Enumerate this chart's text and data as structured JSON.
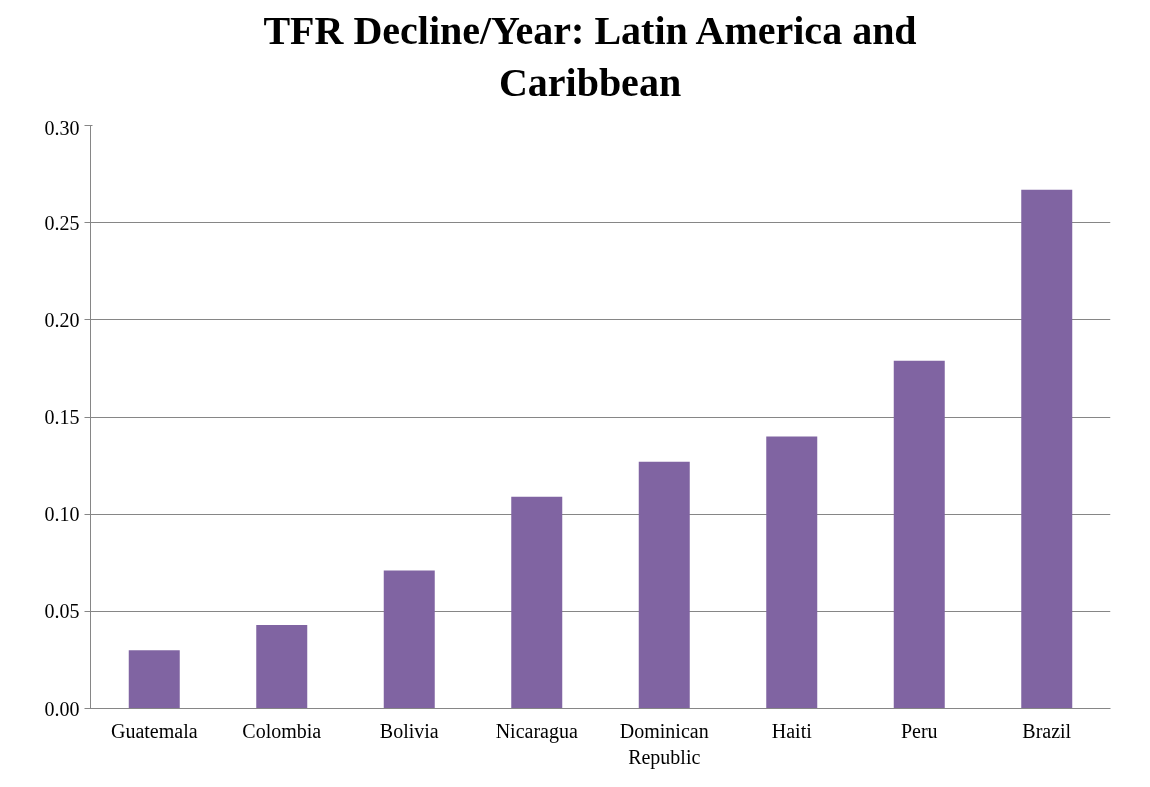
{
  "chart_data": {
    "type": "bar",
    "title": "TFR Decline/Year: Latin America and Caribbean",
    "categories": [
      "Guatemala",
      "Colombia",
      "Bolivia",
      "Nicaragua",
      "Dominican Republic",
      "Haiti",
      "Peru",
      "Brazil"
    ],
    "values": [
      0.03,
      0.043,
      0.071,
      0.109,
      0.127,
      0.14,
      0.179,
      0.267
    ],
    "color": "#8064a2",
    "ylim": [
      0,
      0.3
    ],
    "yticks": [
      {
        "value": 0,
        "label": "0.00"
      },
      {
        "value": 0.05,
        "label": "0.05"
      },
      {
        "value": 0.1,
        "label": "0.10"
      },
      {
        "value": 0.15,
        "label": "0.15"
      },
      {
        "value": 0.2,
        "label": "0.20"
      },
      {
        "value": 0.25,
        "label": "0.25"
      },
      {
        "value": 0.3,
        "label": "0.30"
      }
    ],
    "grid": "y"
  }
}
